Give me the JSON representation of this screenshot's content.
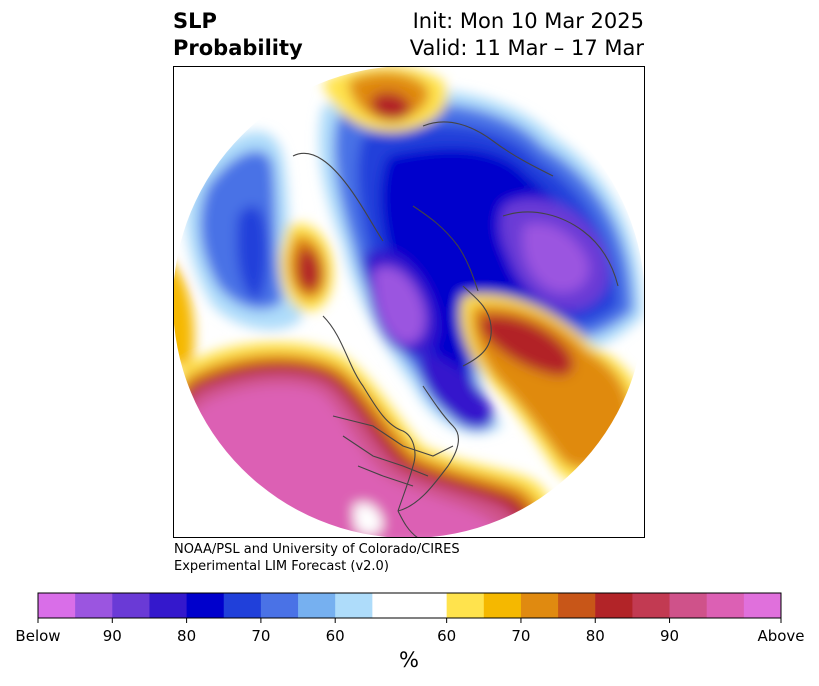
{
  "title": {
    "left": "SLP\nProbability",
    "right": "Init: Mon 10 Mar 2025\nValid: 11 Mar – 17 Mar"
  },
  "credit": "NOAA/PSL and University of Colorado/CIRES\nExperimental LIM Forecast (v2.0)",
  "colorbar": {
    "colors": [
      "#d96ee8",
      "#9b55e0",
      "#6a3ad6",
      "#3418cc",
      "#0000cc",
      "#2040da",
      "#4a72e6",
      "#76b0f0",
      "#aedcfa",
      "#ffffff",
      "#ffe34d",
      "#f5b800",
      "#e08a10",
      "#c85618",
      "#b22428",
      "#c23a52",
      "#cf528a",
      "#dc60b4",
      "#e070dc"
    ],
    "tick_labels": [
      "Below",
      "90",
      "80",
      "70",
      "60",
      "60",
      "70",
      "80",
      "90",
      "Above"
    ],
    "unit": "%"
  },
  "map": {
    "projection": "North Polar Stereographic",
    "field": "Sea level pressure anomaly probability",
    "features": [
      "coastlines",
      "country borders",
      "US state borders"
    ]
  }
}
